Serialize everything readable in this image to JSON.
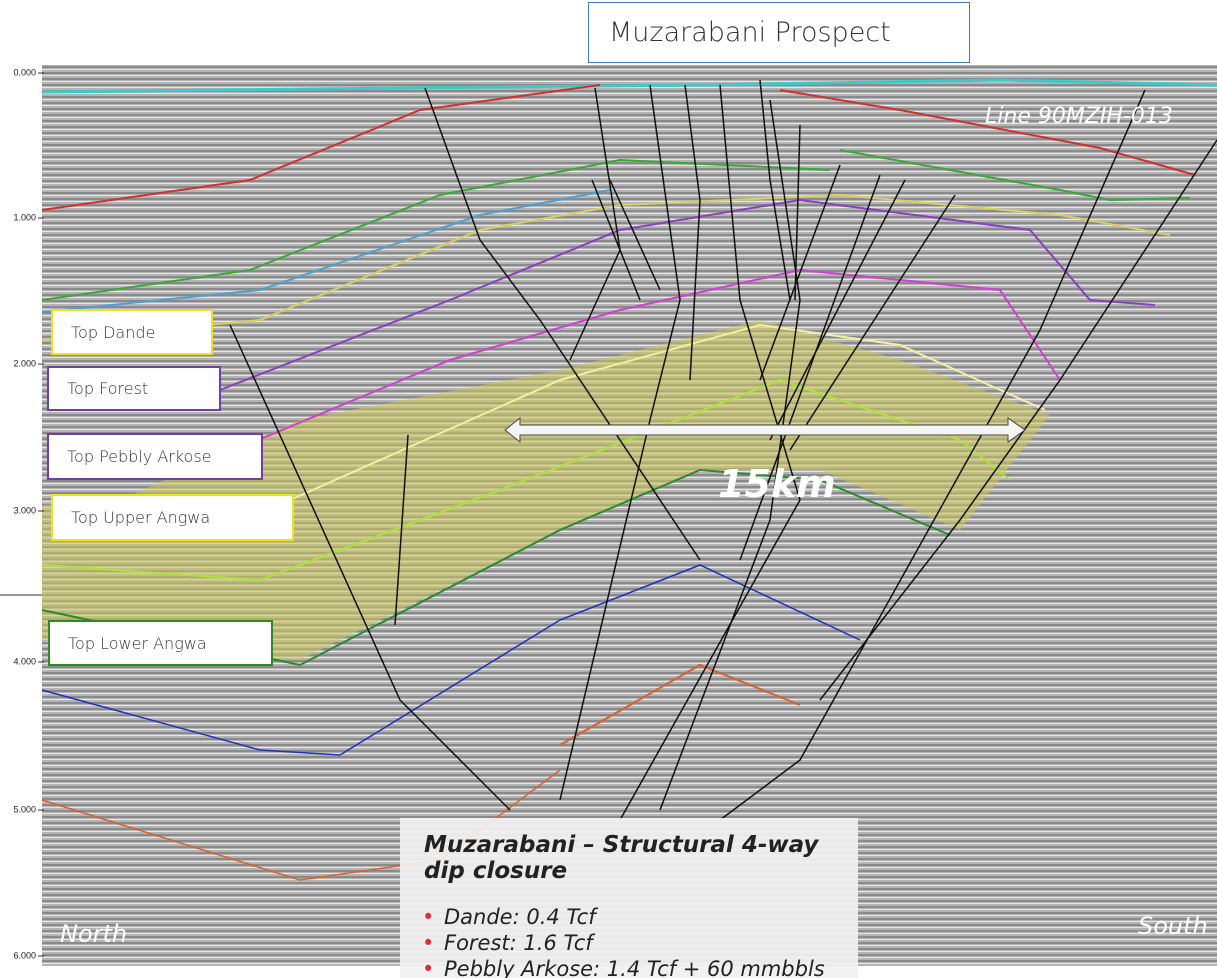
{
  "header": {
    "title": "Muzarabani Prospect",
    "line": "Line 90MZIH-013"
  },
  "depth_axis": {
    "labels": [
      "0.000",
      "1.000",
      "2.000",
      "3.000",
      "4.000",
      "5.000",
      "6.000"
    ]
  },
  "horizons": [
    "Top Dande",
    "Top Forest",
    "Top Pebbly Arkose",
    "Top Upper Angwa",
    "Top Lower Angwa"
  ],
  "scale_label": "15km",
  "directions": {
    "left": "North",
    "right": "South"
  },
  "info": {
    "title": "Muzarabani – Structural 4-way dip closure",
    "items": [
      "Dande: 0.4 Tcf",
      "Forest: 1.6 Tcf",
      "Pebbly Arkose: 1.4 Tcf + 60 mmbbls"
    ]
  }
}
